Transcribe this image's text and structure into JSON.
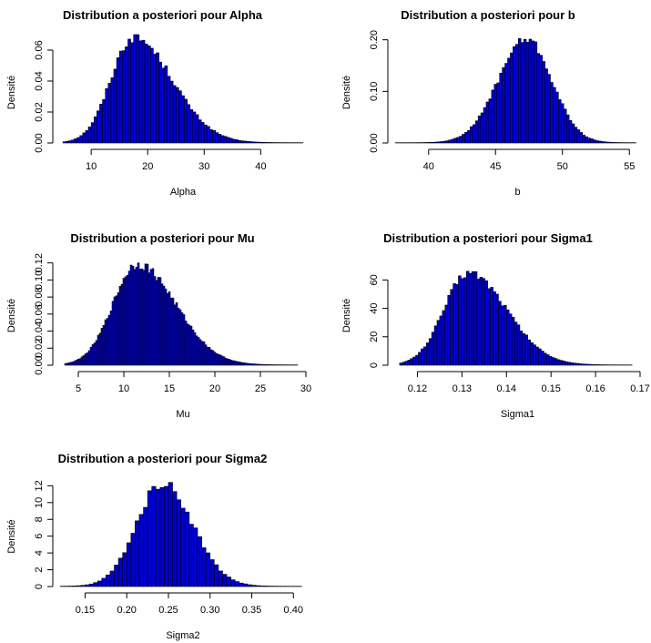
{
  "chart_data": [
    {
      "type": "bar",
      "title": "Distribution a posteriori pour Alpha",
      "xlabel": "Alpha",
      "ylabel": "Densité",
      "xlim": [
        4.5,
        48
      ],
      "ylim": [
        0,
        0.07
      ],
      "x_ticks": [
        10,
        20,
        30,
        40
      ],
      "x_tick_labels": [
        "10",
        "20",
        "30",
        "40"
      ],
      "y_ticks": [
        0,
        0.02,
        0.04,
        0.06
      ],
      "y_tick_labels": [
        "0.00",
        "0.02",
        "0.04",
        "0.06"
      ],
      "bar_color": "#0000cd",
      "distribution": {
        "mode": 17.5,
        "sd_left": 4.0,
        "sd_right": 6.8,
        "peak": 0.068
      },
      "range": [
        5,
        47.5
      ],
      "bin_width": 0.5
    },
    {
      "type": "bar",
      "title": "Distribution a posteriori pour b",
      "xlabel": "b",
      "ylabel": "Densité",
      "xlim": [
        37.5,
        55.8
      ],
      "ylim": [
        0,
        0.21
      ],
      "x_ticks": [
        40,
        45,
        50,
        55
      ],
      "x_tick_labels": [
        "40",
        "45",
        "50",
        "55"
      ],
      "y_ticks": [
        0,
        0.1,
        0.2
      ],
      "y_tick_labels": [
        "0.00",
        "0.10",
        "0.20"
      ],
      "bar_color": "#0000cd",
      "distribution": {
        "mode": 47.3,
        "sd_left": 2.1,
        "sd_right": 1.9,
        "peak": 0.2
      },
      "range": [
        37.5,
        55.5
      ],
      "bin_width": 0.2
    },
    {
      "type": "bar",
      "title": "Distribution a posteriori pour Mu",
      "xlabel": "Mu",
      "ylabel": "Densité",
      "xlim": [
        3,
        30
      ],
      "ylim": [
        0,
        0.125
      ],
      "x_ticks": [
        5,
        10,
        15,
        20,
        25,
        30
      ],
      "x_tick_labels": [
        "5",
        "10",
        "15",
        "20",
        "25",
        "30"
      ],
      "y_ticks": [
        0,
        0.02,
        0.04,
        0.06,
        0.08,
        0.1,
        0.12
      ],
      "y_tick_labels": [
        "0.00",
        "0.02",
        "0.04",
        "0.06",
        "0.08",
        "0.10",
        "0.12"
      ],
      "bar_color": "#0000cd",
      "distribution": {
        "mode": 11.5,
        "sd_left": 2.7,
        "sd_right": 4.2,
        "peak": 0.118
      },
      "range": [
        3.5,
        29
      ],
      "bin_width": 0.2
    },
    {
      "type": "bar",
      "title": "Distribution a posteriori pour Sigma1",
      "xlabel": "Sigma1",
      "ylabel": "Densité",
      "xlim": [
        0.115,
        0.17
      ],
      "ylim": [
        0,
        75
      ],
      "x_ticks": [
        0.12,
        0.13,
        0.14,
        0.15,
        0.16,
        0.17
      ],
      "x_tick_labels": [
        "0.12",
        "0.13",
        "0.14",
        "0.15",
        "0.16",
        "0.17"
      ],
      "y_ticks": [
        0,
        20,
        40,
        60
      ],
      "y_tick_labels": [
        "0",
        "20",
        "40",
        "60"
      ],
      "bar_color": "#0000cd",
      "distribution": {
        "mode": 0.1315,
        "sd_left": 0.0055,
        "sd_right": 0.0085,
        "peak": 65
      },
      "range": [
        0.116,
        0.168
      ],
      "bin_width": 0.0006
    },
    {
      "type": "bar",
      "title": "Distribution a posteriori pour Sigma2",
      "xlabel": "Sigma2",
      "ylabel": "Densité",
      "xlim": [
        0.12,
        0.415
      ],
      "ylim": [
        0,
        12.8
      ],
      "x_ticks": [
        0.15,
        0.2,
        0.25,
        0.3,
        0.35,
        0.4
      ],
      "x_tick_labels": [
        "0.15",
        "0.20",
        "0.25",
        "0.30",
        "0.35",
        "0.40"
      ],
      "y_ticks": [
        0,
        2,
        4,
        6,
        8,
        10,
        12
      ],
      "y_tick_labels": [
        "0",
        "2",
        "4",
        "6",
        "8",
        "10",
        "12"
      ],
      "bar_color": "#0000cd",
      "distribution": {
        "mode": 0.243,
        "sd_left": 0.031,
        "sd_right": 0.036,
        "peak": 12.3
      },
      "range": [
        0.12,
        0.41
      ],
      "bin_width": 0.005
    }
  ]
}
